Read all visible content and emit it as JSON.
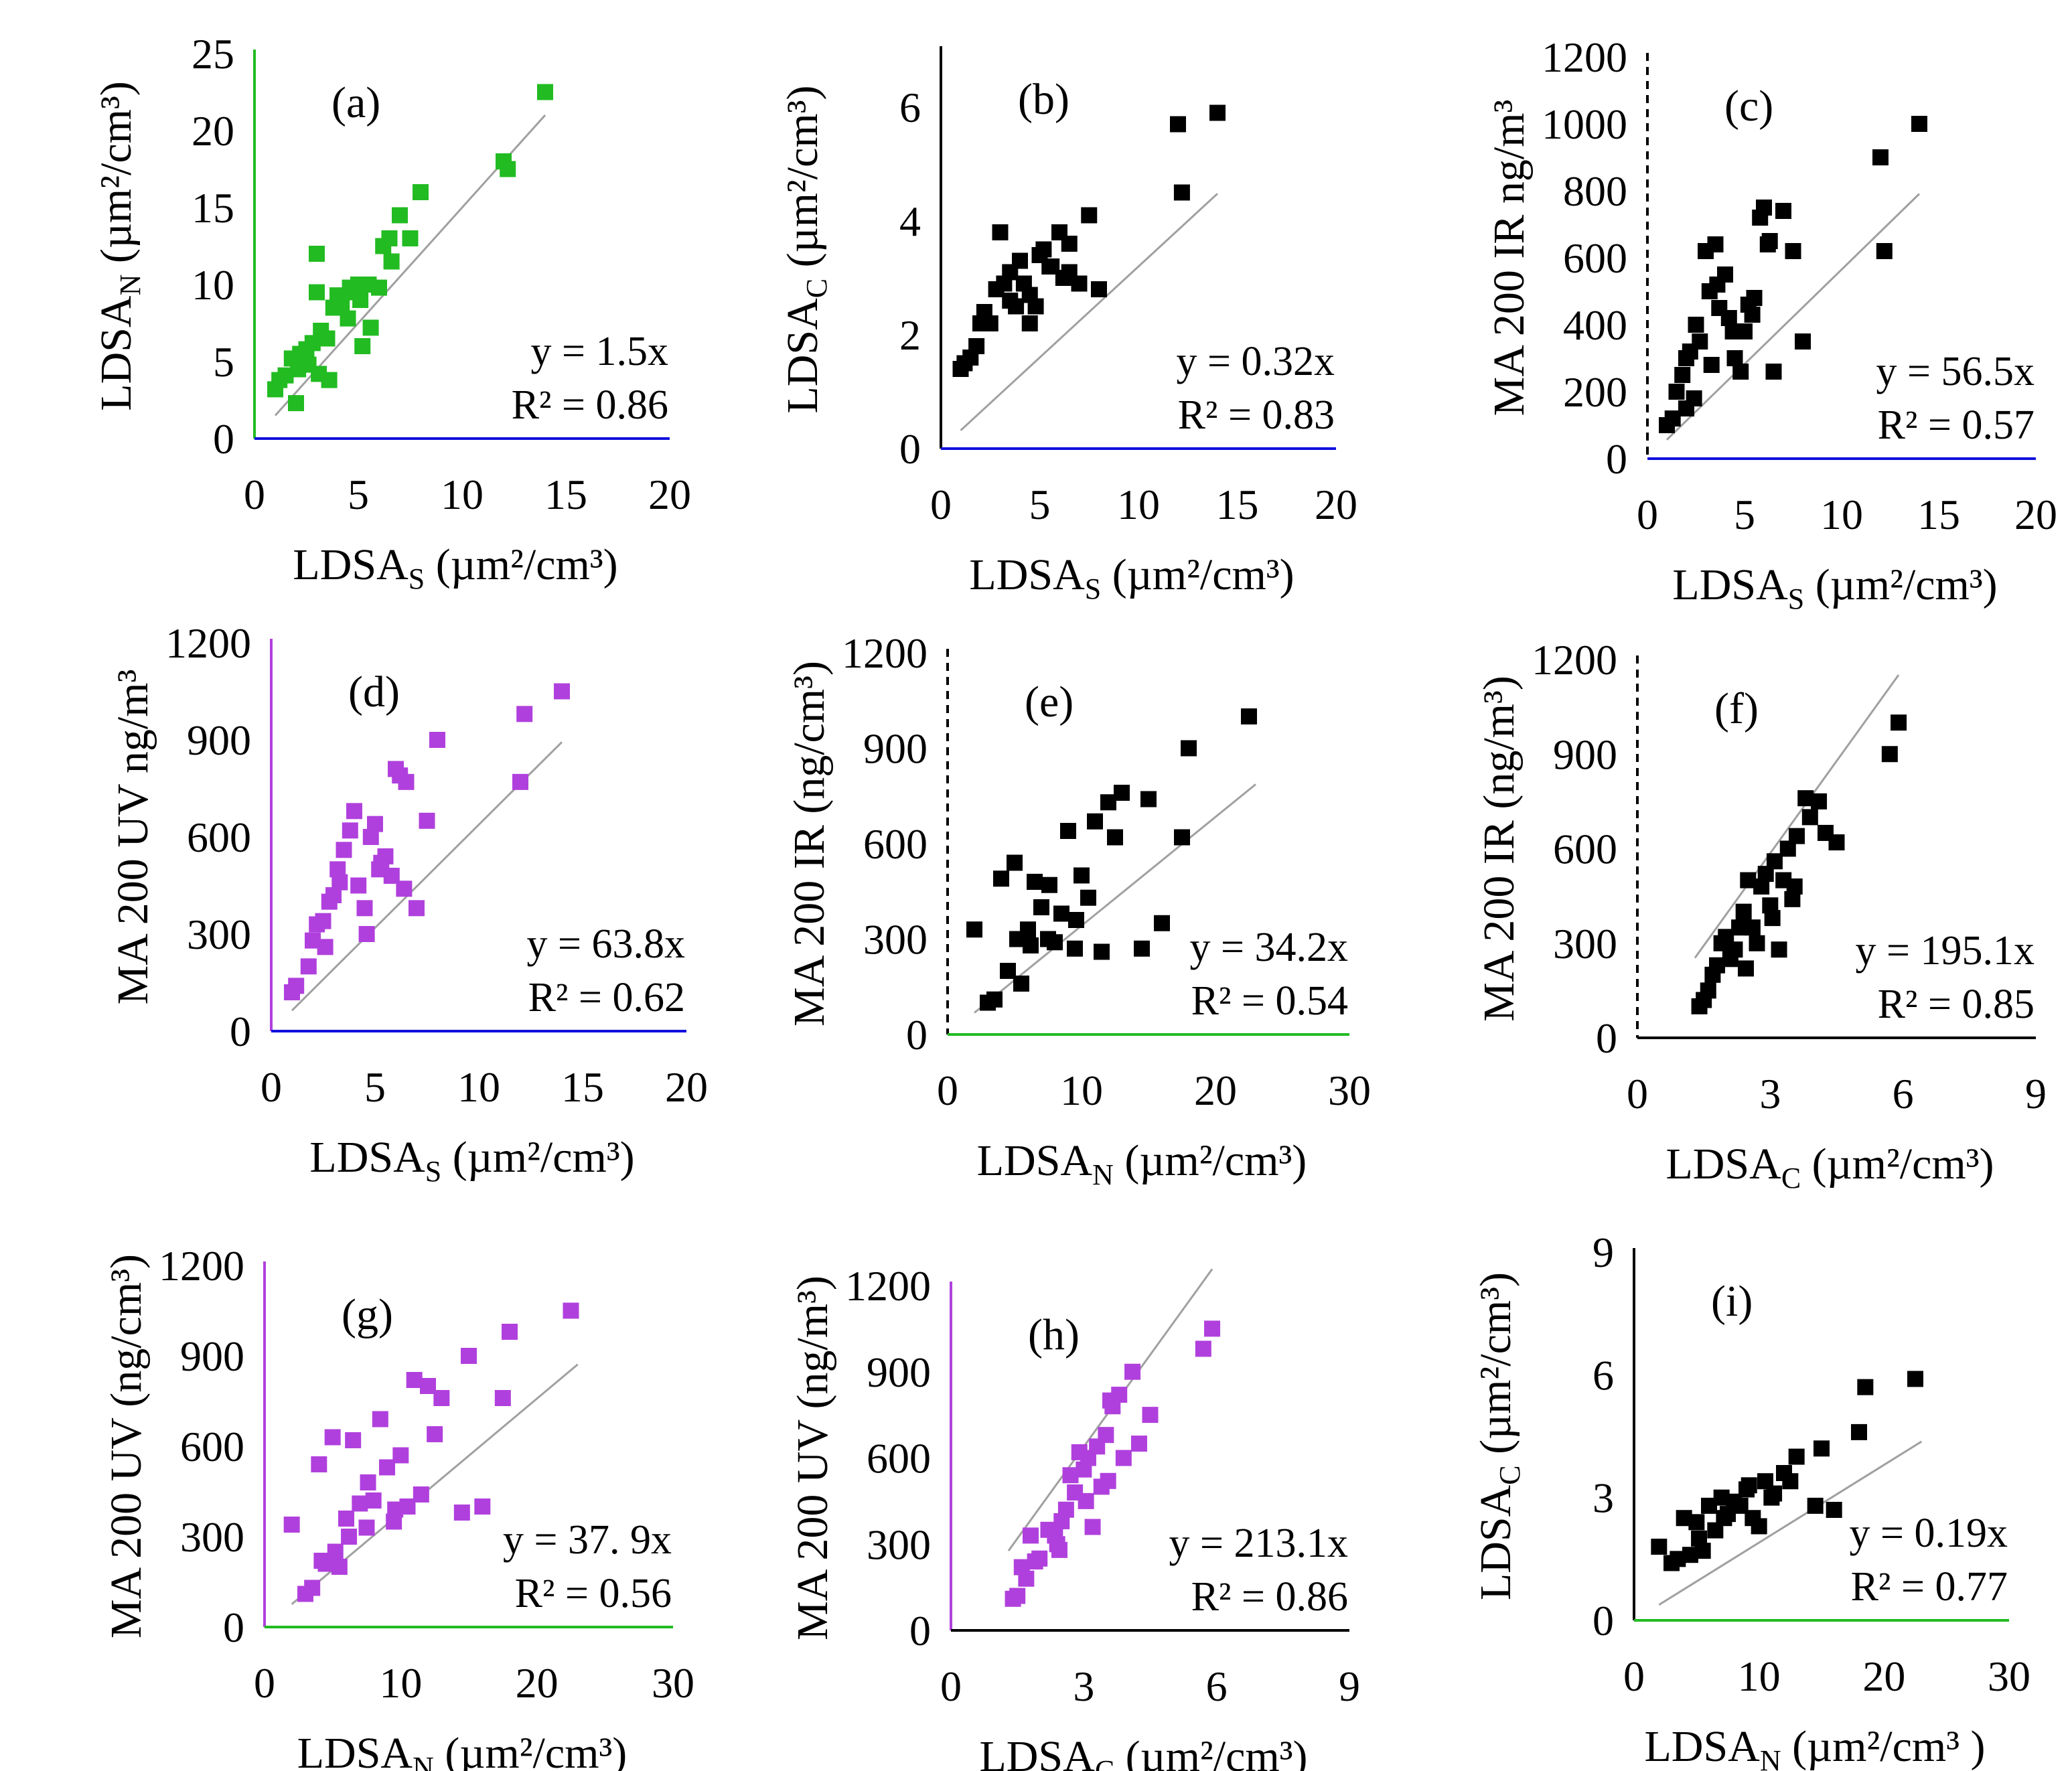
{
  "figure": {
    "title": ""
  },
  "chart_data": [
    {
      "panel": "(a)",
      "type": "scatter",
      "xlabel": {
        "base": "LDSA",
        "sub": "S",
        "unit": " (µm²/cm³)"
      },
      "ylabel": {
        "base": "LDSA",
        "sub": "N",
        "unit": " (µm²/cm³)"
      },
      "xlim": [
        0,
        20
      ],
      "xticks": [
        0,
        5,
        10,
        15,
        20
      ],
      "ylim": [
        0,
        25
      ],
      "yticks": [
        0,
        5,
        10,
        15,
        20,
        25
      ],
      "slope": 1.5,
      "fit_x": [
        1,
        14
      ],
      "equation": "y = 1.5x",
      "r2": "R² = 0.86",
      "colors": {
        "marker": "#22bb22",
        "yaxis": "#22bb22",
        "xaxis": "#1111dd",
        "fit": "#a0a0a0"
      },
      "yaxis_style": "solid",
      "x": [
        1,
        1.2,
        1.5,
        1.8,
        2,
        2.2,
        2.5,
        2.8,
        3,
        3.2,
        3.5,
        3.8,
        4,
        4.2,
        4.5,
        4.8,
        5,
        5.2,
        5.5,
        6,
        6.2,
        6.5,
        7,
        7.5,
        8,
        12,
        12.2,
        14,
        2.1,
        3.1,
        4.1,
        3.6,
        5.6,
        6.6,
        3,
        2.6,
        4.6,
        5.1
      ],
      "y": [
        3.2,
        3.8,
        4.1,
        5.2,
        2.3,
        5.5,
        5.8,
        6.2,
        12,
        7,
        6.5,
        8.5,
        9.3,
        8.8,
        7.8,
        9.5,
        10,
        6,
        10,
        9.8,
        12.5,
        13,
        14.5,
        13,
        16,
        18,
        17.5,
        22.5,
        4.5,
        4.2,
        9,
        3.8,
        7.2,
        11.5,
        9.5,
        4.8,
        9.8,
        9
      ]
    },
    {
      "panel": "(b)",
      "type": "scatter",
      "xlabel": {
        "base": "LDSA",
        "sub": "S",
        "unit": " (µm²/cm³)"
      },
      "ylabel": {
        "base": "LDSA",
        "sub": "C",
        "unit": " (µm²/cm³)"
      },
      "xlim": [
        0,
        20
      ],
      "xticks": [
        0,
        5,
        10,
        15,
        20
      ],
      "ylim": [
        0,
        7
      ],
      "yticks": [
        0,
        2,
        4,
        6
      ],
      "slope": 0.32,
      "fit_x": [
        1,
        14
      ],
      "equation": "y = 0.32x",
      "r2": "R² = 0.83",
      "colors": {
        "marker": "#000000",
        "yaxis": "#000000",
        "xaxis": "#1111dd",
        "fit": "#a0a0a0"
      },
      "yaxis_style": "solid",
      "x": [
        1,
        1.2,
        1.5,
        1.8,
        2,
        2.2,
        2.5,
        2.8,
        3,
        3.2,
        3.5,
        3.8,
        4,
        4.2,
        4.5,
        4.8,
        5,
        5.2,
        5.5,
        6,
        6.2,
        6.5,
        7,
        7.5,
        8,
        12,
        12.2,
        14,
        3.5,
        4.5,
        5.6,
        6.5
      ],
      "y": [
        1.4,
        1.5,
        1.6,
        1.8,
        2.2,
        2.4,
        2.2,
        2.8,
        3.8,
        2.9,
        3.1,
        2.5,
        3.3,
        2.9,
        2.7,
        2.5,
        3.4,
        3.5,
        3.2,
        3.8,
        3.0,
        3.6,
        2.9,
        4.1,
        2.8,
        5.7,
        4.5,
        5.9,
        2.6,
        2.2,
        3.2,
        3.1
      ]
    },
    {
      "panel": "(c)",
      "type": "scatter",
      "xlabel": {
        "base": "LDSA",
        "sub": "S",
        "unit": " (µm²/cm³)"
      },
      "ylabel": {
        "base": "MA 200 IR ng/m³",
        "sub": "",
        "unit": ""
      },
      "xlim": [
        0,
        20
      ],
      "xticks": [
        0,
        5,
        10,
        15,
        20
      ],
      "ylim": [
        0,
        1200
      ],
      "yticks": [
        0,
        200,
        400,
        600,
        800,
        1000,
        1200
      ],
      "slope": 56.5,
      "fit_x": [
        1,
        14
      ],
      "equation": "y = 56.5x",
      "r2": "R² = 0.57",
      "colors": {
        "marker": "#000000",
        "yaxis": "#000000",
        "xaxis": "#1111dd",
        "fit": "#a0a0a0"
      },
      "yaxis_style": "dashed",
      "x": [
        1,
        1.3,
        1.5,
        1.8,
        2,
        2.2,
        2.5,
        2.7,
        3,
        3.2,
        3.5,
        3.7,
        4,
        4.2,
        4.5,
        4.8,
        5,
        5.2,
        5.5,
        5.8,
        6,
        6.2,
        6.5,
        7,
        7.5,
        8,
        12,
        12.2,
        14,
        2.4,
        3.3,
        4.4,
        5.4,
        6.3,
        2,
        3.6
      ],
      "y": [
        100,
        120,
        200,
        250,
        300,
        320,
        400,
        350,
        620,
        500,
        640,
        450,
        550,
        420,
        300,
        260,
        380,
        460,
        480,
        720,
        750,
        640,
        260,
        740,
        620,
        350,
        900,
        620,
        1000,
        180,
        280,
        380,
        430,
        650,
        150,
        520
      ]
    },
    {
      "panel": "(d)",
      "type": "scatter",
      "xlabel": {
        "base": "LDSA",
        "sub": "S",
        "unit": " (µm²/cm³)"
      },
      "ylabel": {
        "base": "MA 200 UV ng/m³",
        "sub": "",
        "unit": ""
      },
      "xlim": [
        0,
        20
      ],
      "xticks": [
        0,
        5,
        10,
        15,
        20
      ],
      "ylim": [
        0,
        1200
      ],
      "yticks": [
        0,
        300,
        600,
        900,
        1200
      ],
      "slope": 63.8,
      "fit_x": [
        1,
        14
      ],
      "equation": "y = 63.8x",
      "r2": "R² = 0.62",
      "colors": {
        "marker": "#b040dd",
        "yaxis": "#b040dd",
        "xaxis": "#1111dd",
        "fit": "#a0a0a0"
      },
      "yaxis_style": "solid",
      "x": [
        1,
        1.2,
        1.8,
        2,
        2.2,
        2.5,
        2.8,
        3,
        3.2,
        3.5,
        3.8,
        4,
        4.2,
        4.5,
        4.8,
        5,
        5.2,
        5.5,
        5.8,
        6,
        6.2,
        6.5,
        7,
        7.5,
        8,
        12,
        12.2,
        14,
        3.3,
        4.6,
        5.3,
        6.4,
        2.6
      ],
      "y": [
        120,
        140,
        200,
        280,
        330,
        340,
        400,
        420,
        500,
        560,
        620,
        680,
        450,
        380,
        600,
        640,
        500,
        540,
        480,
        810,
        790,
        770,
        380,
        650,
        900,
        770,
        980,
        1050,
        460,
        300,
        520,
        440,
        260
      ]
    },
    {
      "panel": "(e)",
      "type": "scatter",
      "xlabel": {
        "base": "LDSA",
        "sub": "N",
        "unit": " (µm²/cm³)"
      },
      "ylabel": {
        "base": "MA 200 IR (ng/cm³)",
        "sub": "",
        "unit": ""
      },
      "xlim": [
        0,
        30
      ],
      "xticks": [
        0,
        10,
        20,
        30
      ],
      "ylim": [
        0,
        1200
      ],
      "yticks": [
        0,
        300,
        600,
        900,
        1200
      ],
      "slope": 34.2,
      "fit_x": [
        2,
        23
      ],
      "equation": "y = 34.2x",
      "r2": "R² = 0.54",
      "colors": {
        "marker": "#000000",
        "yaxis": "#000000",
        "xaxis": "#22bb22",
        "fit": "#a0a0a0"
      },
      "yaxis_style": "dashed",
      "x": [
        2,
        3,
        3.5,
        4,
        4.5,
        5,
        5.2,
        5.5,
        6,
        6.5,
        7,
        7.5,
        8,
        8.5,
        9,
        9.5,
        10,
        10.5,
        11,
        11.5,
        12,
        12.5,
        13,
        14.5,
        15,
        16,
        17.5,
        18,
        22.5,
        6.2,
        7.6,
        9.6
      ],
      "y": [
        330,
        100,
        110,
        490,
        200,
        540,
        300,
        160,
        330,
        480,
        400,
        300,
        290,
        380,
        640,
        270,
        500,
        430,
        670,
        260,
        730,
        620,
        760,
        270,
        740,
        350,
        620,
        900,
        1000,
        280,
        470,
        360
      ]
    },
    {
      "panel": "(f)",
      "type": "scatter",
      "xlabel": {
        "base": "LDSA",
        "sub": "C",
        "unit": " (µm²/cm³)"
      },
      "ylabel": {
        "base": "MA 200 IR (ng/m³)",
        "sub": "",
        "unit": ""
      },
      "xlim": [
        0,
        9
      ],
      "xticks": [
        0,
        3,
        6,
        9
      ],
      "ylim": [
        0,
        1200
      ],
      "yticks": [
        0,
        300,
        600,
        900,
        1200
      ],
      "slope": 195.1,
      "fit_x": [
        1.3,
        5.9
      ],
      "equation": "y = 195.1x",
      "r2": "R² = 0.85",
      "colors": {
        "marker": "#000000",
        "yaxis": "#000000",
        "xaxis": "#000000",
        "fit": "#a0a0a0"
      },
      "yaxis_style": "dashed",
      "x": [
        1.4,
        1.5,
        1.6,
        1.7,
        1.8,
        2,
        2.1,
        2.2,
        2.3,
        2.4,
        2.5,
        2.6,
        2.7,
        2.8,
        2.9,
        3,
        3.1,
        3.2,
        3.3,
        3.4,
        3.5,
        3.6,
        3.8,
        3.9,
        4.1,
        4.5,
        5.7,
        5.9,
        2.45,
        3.05,
        3.55,
        4.25,
        1.9
      ],
      "y": [
        100,
        120,
        150,
        200,
        230,
        320,
        250,
        280,
        350,
        400,
        500,
        350,
        300,
        480,
        520,
        420,
        560,
        280,
        500,
        600,
        440,
        640,
        760,
        700,
        750,
        620,
        900,
        1000,
        220,
        380,
        480,
        650,
        300
      ]
    },
    {
      "panel": "(g)",
      "type": "scatter",
      "xlabel": {
        "base": "LDSA",
        "sub": "N",
        "unit": " (µm²/cm³)"
      },
      "ylabel": {
        "base": "MA 200 UV (ng/cm³)",
        "sub": "",
        "unit": ""
      },
      "xlim": [
        0,
        30
      ],
      "xticks": [
        0,
        10,
        20,
        30
      ],
      "ylim": [
        0,
        1200
      ],
      "yticks": [
        0,
        300,
        600,
        900,
        1200
      ],
      "slope": 37.9,
      "fit_x": [
        2,
        23
      ],
      "equation": "y = 37. 9x",
      "r2": "R² = 0.56",
      "colors": {
        "marker": "#b040dd",
        "yaxis": "#b040dd",
        "xaxis": "#22bb22",
        "fit": "#a0a0a0"
      },
      "yaxis_style": "solid",
      "x": [
        2,
        3,
        3.5,
        4,
        4.5,
        5,
        5.2,
        5.5,
        6,
        6.5,
        7,
        7.5,
        8,
        8.5,
        9,
        9.5,
        10,
        10.5,
        11,
        11.5,
        12,
        12.5,
        13,
        14.5,
        15,
        16,
        17.5,
        18,
        22.5,
        6.2,
        7.6,
        9.6,
        4.2
      ],
      "y": [
        340,
        110,
        130,
        540,
        210,
        630,
        250,
        200,
        360,
        620,
        410,
        330,
        420,
        690,
        530,
        350,
        570,
        400,
        820,
        440,
        800,
        640,
        760,
        380,
        900,
        400,
        760,
        980,
        1050,
        300,
        480,
        390,
        220
      ]
    },
    {
      "panel": "(h)",
      "type": "scatter",
      "xlabel": {
        "base": "LDSA",
        "sub": "C",
        "unit": " (µm²/cm³)"
      },
      "ylabel": {
        "base": "MA 200 UV (ng/m³)",
        "sub": "",
        "unit": ""
      },
      "xlim": [
        0,
        9
      ],
      "xticks": [
        0,
        3,
        6,
        9
      ],
      "ylim": [
        0,
        1200
      ],
      "yticks": [
        0,
        300,
        600,
        900,
        1200
      ],
      "slope": 213.1,
      "fit_x": [
        1.3,
        5.9
      ],
      "equation": "y = 213.1x",
      "r2": "R² = 0.86",
      "colors": {
        "marker": "#b040dd",
        "yaxis": "#b040dd",
        "xaxis": "#000000",
        "fit": "#a0a0a0"
      },
      "yaxis_style": "solid",
      "x": [
        1.4,
        1.5,
        1.6,
        1.7,
        1.8,
        2,
        2.2,
        2.4,
        2.5,
        2.6,
        2.7,
        2.8,
        2.9,
        3,
        3.1,
        3.2,
        3.3,
        3.4,
        3.5,
        3.6,
        3.8,
        3.9,
        4.1,
        4.5,
        5.7,
        5.9,
        2.45,
        3.05,
        3.55,
        4.25,
        1.9,
        2.35,
        3.65
      ],
      "y": [
        110,
        120,
        220,
        180,
        330,
        250,
        350,
        300,
        380,
        420,
        540,
        480,
        620,
        560,
        600,
        360,
        640,
        500,
        680,
        800,
        820,
        600,
        900,
        750,
        980,
        1050,
        280,
        450,
        520,
        650,
        240,
        330,
        780
      ]
    },
    {
      "panel": "(i)",
      "type": "scatter",
      "xlabel": {
        "base": "LDSA",
        "sub": "N",
        "unit": " (µm²/cm³ )"
      },
      "ylabel": {
        "base": "LDSA",
        "sub": "C",
        "unit": " (µm²/cm³)"
      },
      "xlim": [
        0,
        30
      ],
      "xticks": [
        0,
        10,
        20,
        30
      ],
      "ylim": [
        0,
        9
      ],
      "yticks": [
        0,
        3,
        6,
        9
      ],
      "slope": 0.19,
      "fit_x": [
        2,
        23
      ],
      "equation": "y = 0.19x",
      "r2": "R² = 0.77",
      "colors": {
        "marker": "#000000",
        "yaxis": "#000000",
        "xaxis": "#22bb22",
        "fit": "#a0a0a0"
      },
      "yaxis_style": "solid",
      "x": [
        2,
        3,
        3.5,
        4,
        4.5,
        5,
        5.5,
        6,
        6.5,
        7,
        7.5,
        8,
        8.5,
        9,
        9.5,
        10,
        10.5,
        11,
        12,
        12.5,
        13,
        14.5,
        15,
        16,
        18,
        18.5,
        22.5,
        5.2,
        7.2,
        9.2,
        11.2
      ],
      "y": [
        1.8,
        1.4,
        1.5,
        2.5,
        1.6,
        2.4,
        1.7,
        2.8,
        2.2,
        3.0,
        2.6,
        2.9,
        2.8,
        3.2,
        2.5,
        2.3,
        3.4,
        3.0,
        3.6,
        3.4,
        4.0,
        2.8,
        4.2,
        2.7,
        4.6,
        5.7,
        5.9,
        2.0,
        2.5,
        3.3,
        3.1
      ]
    }
  ]
}
